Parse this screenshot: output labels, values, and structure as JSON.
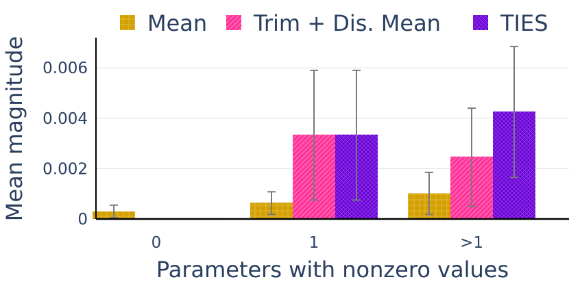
{
  "chart_data": {
    "type": "bar",
    "xlabel": "Parameters with nonzero values",
    "ylabel": "Mean magnitude",
    "categories": [
      "0",
      "1",
      ">1"
    ],
    "ylim": [
      0,
      0.0072
    ],
    "yticks": [
      0,
      0.002,
      0.004,
      0.006
    ],
    "ytick_labels": [
      "0",
      "0.002",
      "0.004",
      "0.006"
    ],
    "grid": true,
    "legend_position": "top",
    "series": [
      {
        "name": "Mean",
        "color": "#d4a000",
        "values": [
          0.0003,
          0.00065,
          0.00102
        ],
        "error_low": [
          5e-05,
          0.00018,
          0.00018
        ],
        "error_high": [
          0.00055,
          0.00108,
          0.00185
        ]
      },
      {
        "name": "Trim + Dis. Mean",
        "color": "#ff3399",
        "values": [
          3e-05,
          0.00335,
          0.00248
        ],
        "error_low": [
          3e-05,
          0.00075,
          0.0005
        ],
        "error_high": [
          3e-05,
          0.0059,
          0.0044
        ]
      },
      {
        "name": "TIES",
        "color": "#6a00d8",
        "values": [
          3e-05,
          0.00335,
          0.00427
        ],
        "error_low": [
          3e-05,
          0.00075,
          0.00165
        ],
        "error_high": [
          3e-05,
          0.0059,
          0.00685
        ]
      }
    ]
  }
}
